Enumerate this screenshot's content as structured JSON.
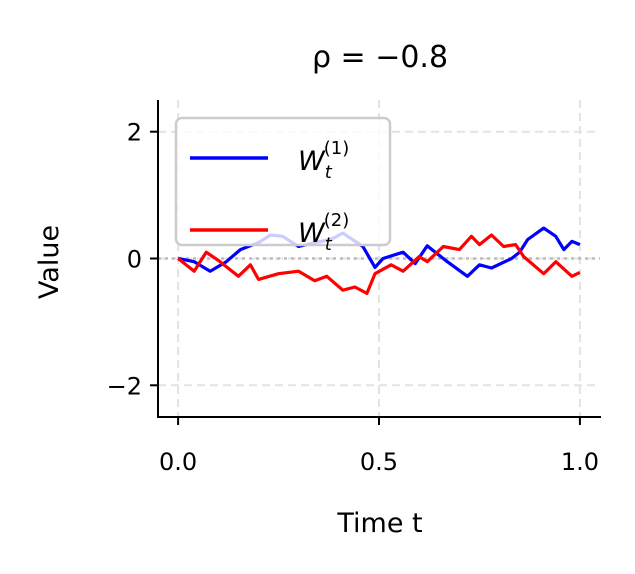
{
  "chart_data": {
    "type": "line",
    "title": "ρ = −0.8",
    "xlabel": "Time t",
    "ylabel": "Value",
    "xlim": [
      -0.05,
      1.05
    ],
    "ylim": [
      -2.5,
      2.5
    ],
    "xticks": [
      0.0,
      0.5,
      1.0
    ],
    "xtick_labels": [
      "0.0",
      "0.5",
      "1.0"
    ],
    "yticks": [
      -2,
      0,
      2
    ],
    "ytick_labels": [
      "−2",
      "0",
      "2"
    ],
    "grid": true,
    "reference_line_y": 0,
    "legend": {
      "placement": "upper-left"
    },
    "series": [
      {
        "name": "W_t^(1)",
        "label_main": "W",
        "label_sub": "t",
        "label_sup": "(1)",
        "color": "#0000ff",
        "x": [
          0,
          0.04,
          0.08,
          0.12,
          0.155,
          0.2,
          0.23,
          0.26,
          0.3,
          0.34,
          0.38,
          0.41,
          0.46,
          0.49,
          0.51,
          0.56,
          0.59,
          0.62,
          0.64,
          0.67,
          0.72,
          0.75,
          0.78,
          0.83,
          0.85,
          0.87,
          0.91,
          0.94,
          0.96,
          0.98,
          1.0
        ],
        "y": [
          0,
          -0.05,
          -0.2,
          -0.05,
          0.14,
          0.25,
          0.37,
          0.35,
          0.19,
          0.25,
          0.3,
          0.4,
          0.19,
          -0.14,
          0,
          0.1,
          -0.08,
          0.2,
          0.1,
          -0.05,
          -0.28,
          -0.1,
          -0.15,
          0,
          0.1,
          0.3,
          0.48,
          0.35,
          0.14,
          0.27,
          0.22
        ]
      },
      {
        "name": "W_t^(2)",
        "label_main": "W",
        "label_sub": "t",
        "label_sup": "(2)",
        "color": "#ff0000",
        "x": [
          0,
          0.04,
          0.07,
          0.1,
          0.15,
          0.18,
          0.2,
          0.25,
          0.3,
          0.34,
          0.37,
          0.41,
          0.44,
          0.47,
          0.49,
          0.53,
          0.56,
          0.6,
          0.62,
          0.66,
          0.7,
          0.73,
          0.75,
          0.78,
          0.81,
          0.84,
          0.86,
          0.91,
          0.94,
          0.98,
          1.0
        ],
        "y": [
          0,
          -0.2,
          0.1,
          -0.03,
          -0.28,
          -0.1,
          -0.33,
          -0.24,
          -0.2,
          -0.35,
          -0.28,
          -0.5,
          -0.45,
          -0.55,
          -0.24,
          -0.1,
          -0.2,
          0.03,
          -0.05,
          0.19,
          0.14,
          0.35,
          0.22,
          0.37,
          0.19,
          0.22,
          0.03,
          -0.24,
          -0.05,
          -0.28,
          -0.22
        ]
      }
    ]
  }
}
